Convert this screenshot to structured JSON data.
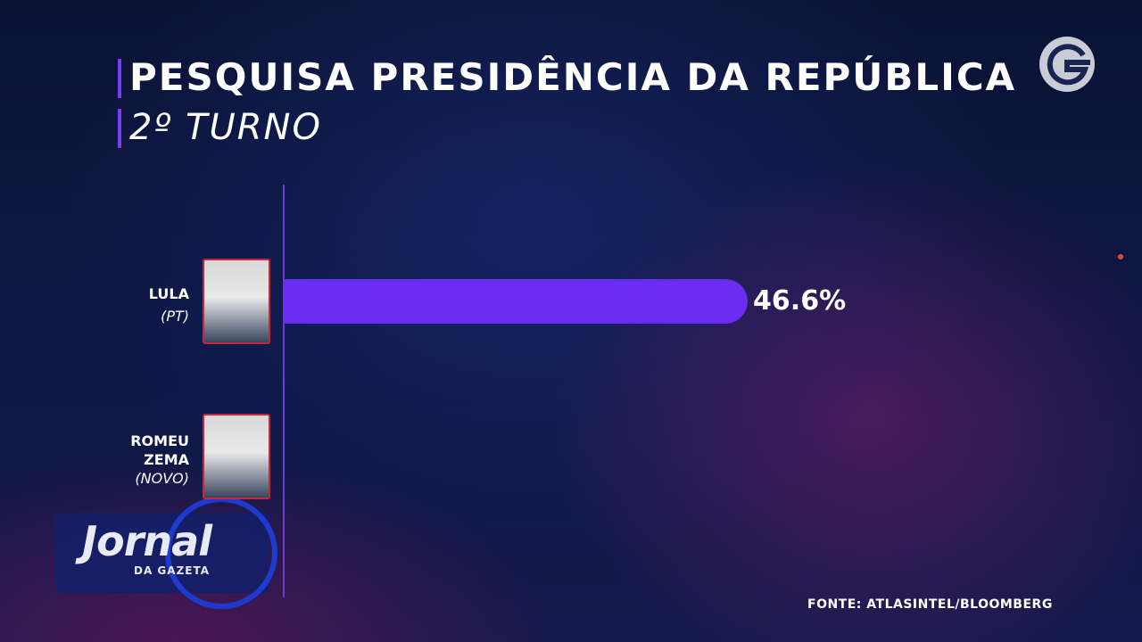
{
  "chart_data": {
    "type": "bar",
    "orientation": "horizontal",
    "title": "PESQUISA PRESIDÊNCIA DA REPÚBLICA",
    "subtitle": "2º TURNO",
    "categories": [
      "LULA",
      "ROMEU ZEMA"
    ],
    "parties": [
      "(PT)",
      "(NOVO)"
    ],
    "values": [
      46.6,
      null
    ],
    "value_labels": [
      "46.6%",
      null
    ],
    "color": "#6b2cf2",
    "source": "FONTE: ATLASINTEL/BLOOMBERG"
  },
  "logo": {
    "name": "Jornal",
    "subtitle": "DA GAZETA"
  }
}
